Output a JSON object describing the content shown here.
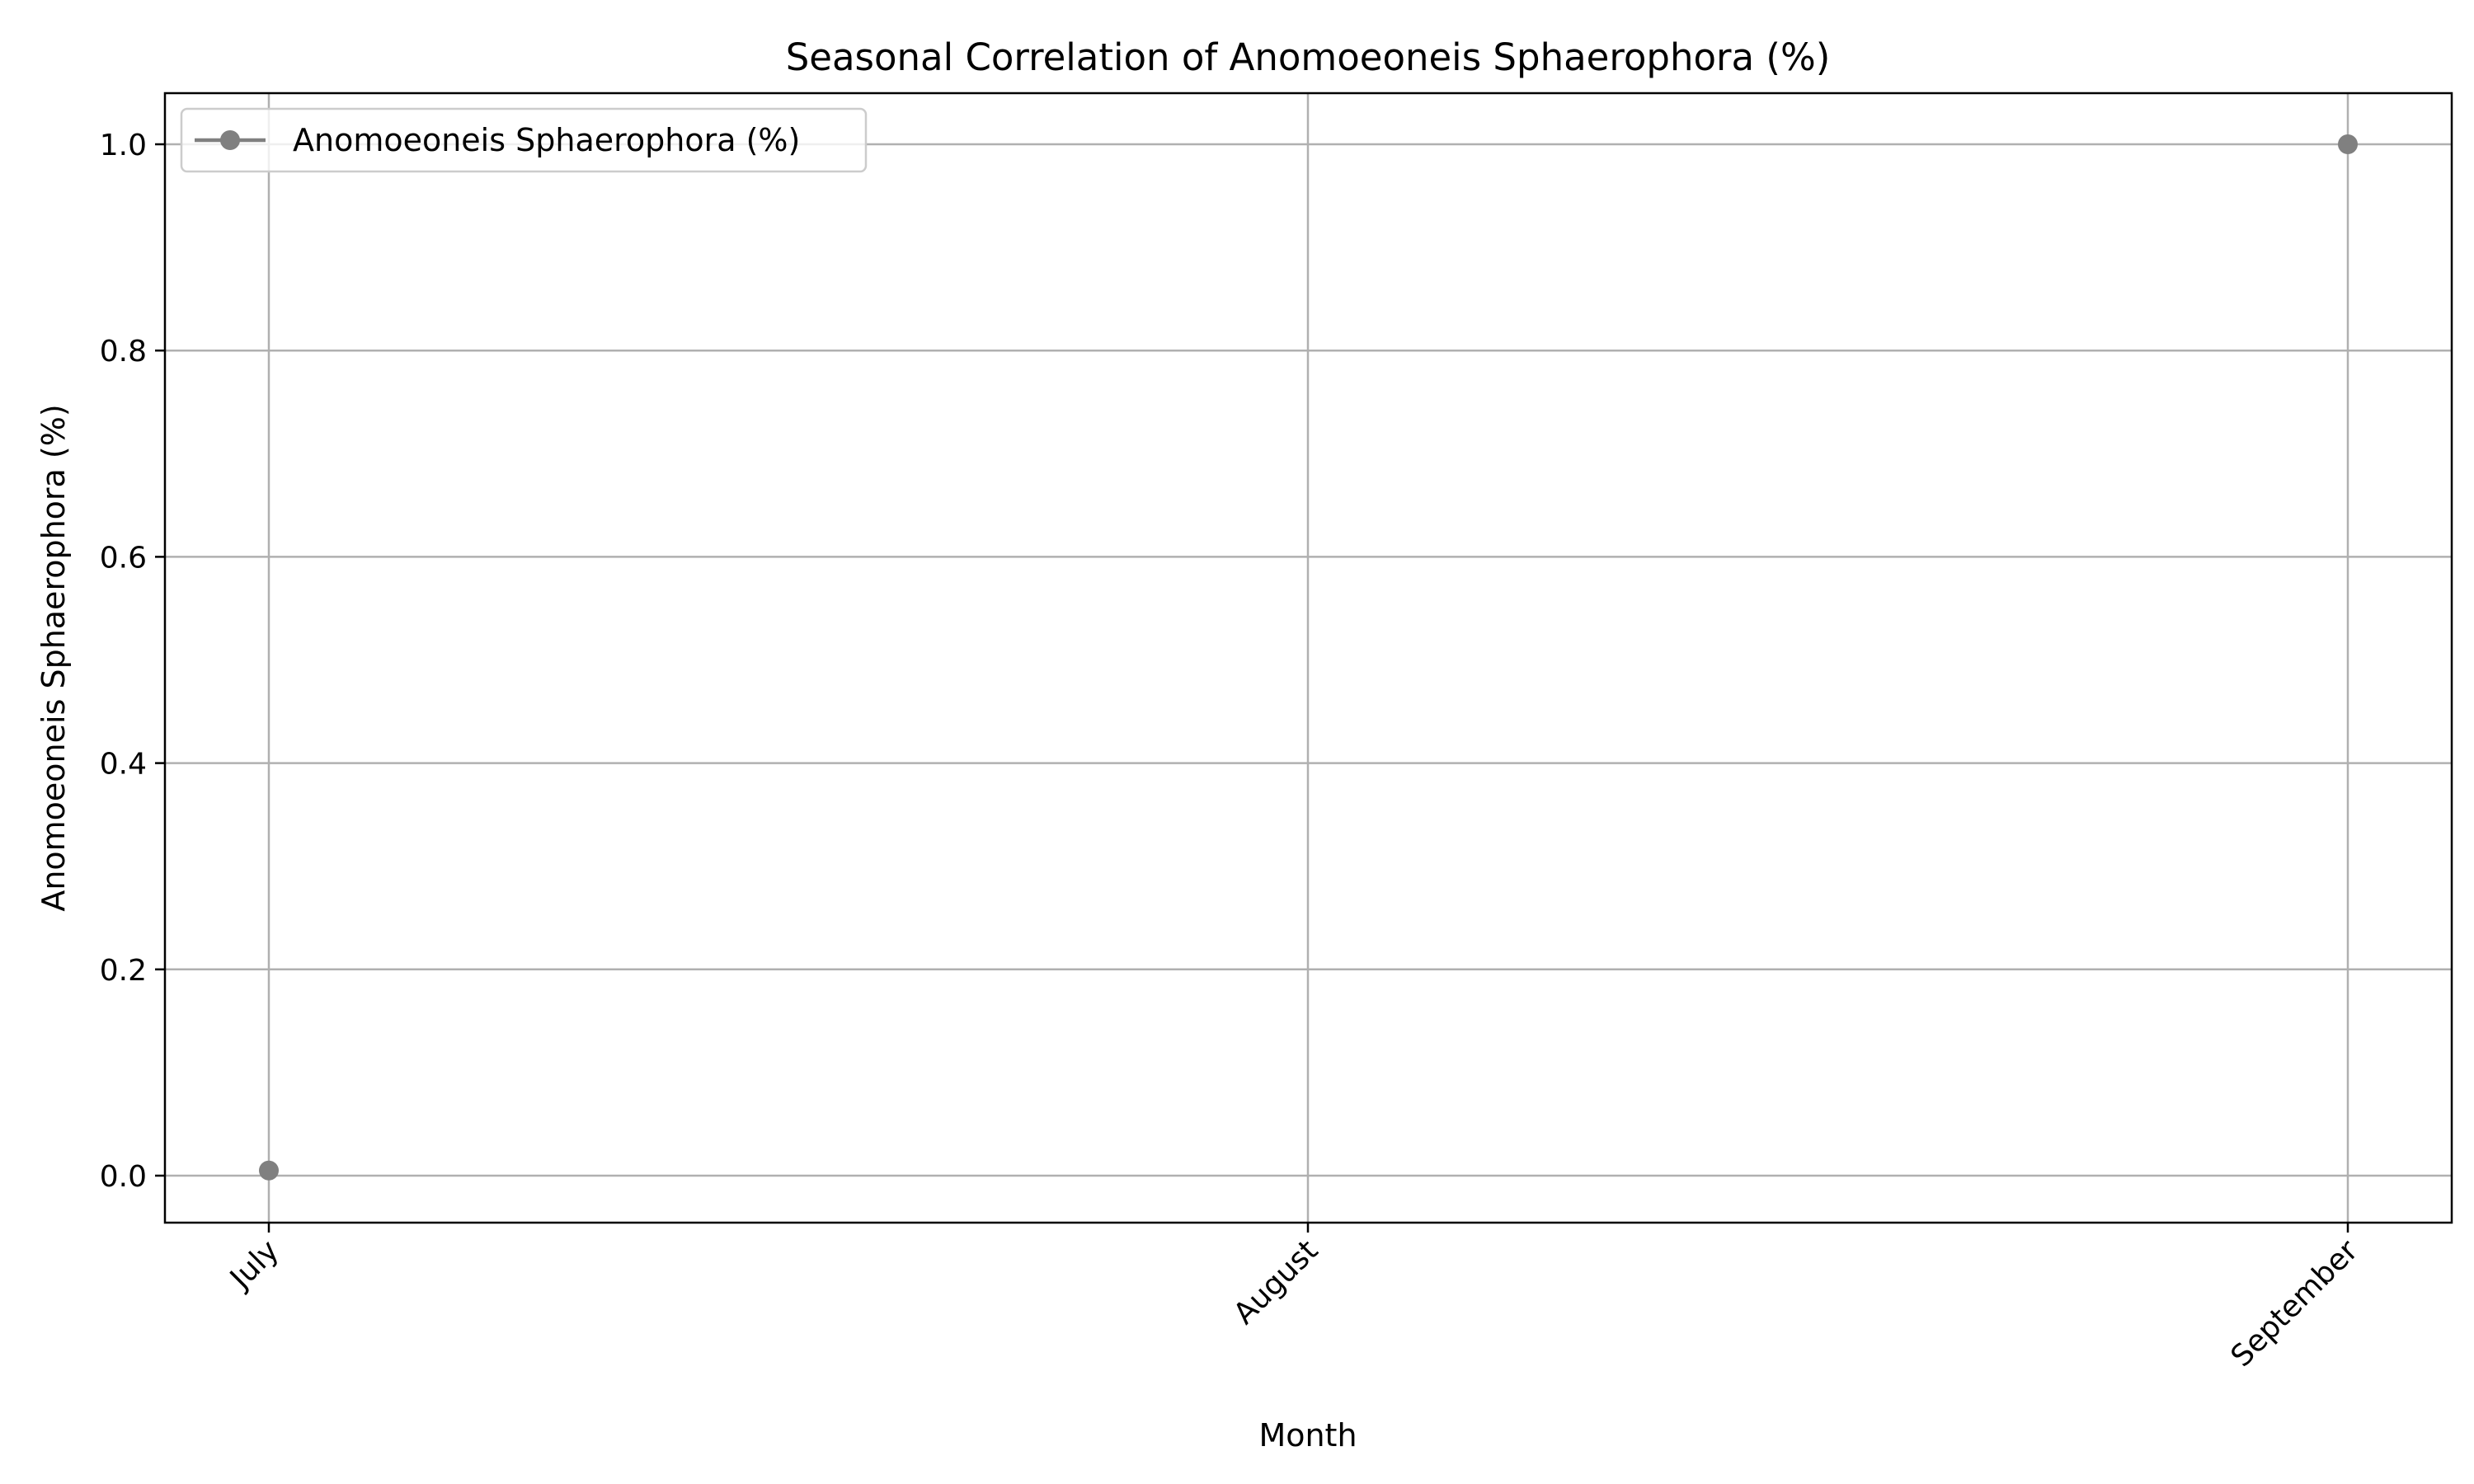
{
  "chart_data": {
    "type": "line",
    "title": "Seasonal Correlation of Anomoeoneis Sphaerophora (%)",
    "xlabel": "Month",
    "ylabel": "Anomoeoneis Sphaerophora (%)",
    "categories": [
      "July",
      "August",
      "September"
    ],
    "series": [
      {
        "name": "Anomoeoneis Sphaerophora (%)",
        "values": [
          0.005,
          null,
          1.0
        ],
        "color": "#808080",
        "marker": "circle"
      }
    ],
    "ylim": [
      -0.045,
      1.05
    ],
    "yticks": [
      0.0,
      0.2,
      0.4,
      0.6,
      0.8,
      1.0
    ],
    "ytick_labels": [
      "0.0",
      "0.2",
      "0.4",
      "0.6",
      "0.8",
      "1.0"
    ],
    "grid": true,
    "legend_position": "upper-left"
  }
}
